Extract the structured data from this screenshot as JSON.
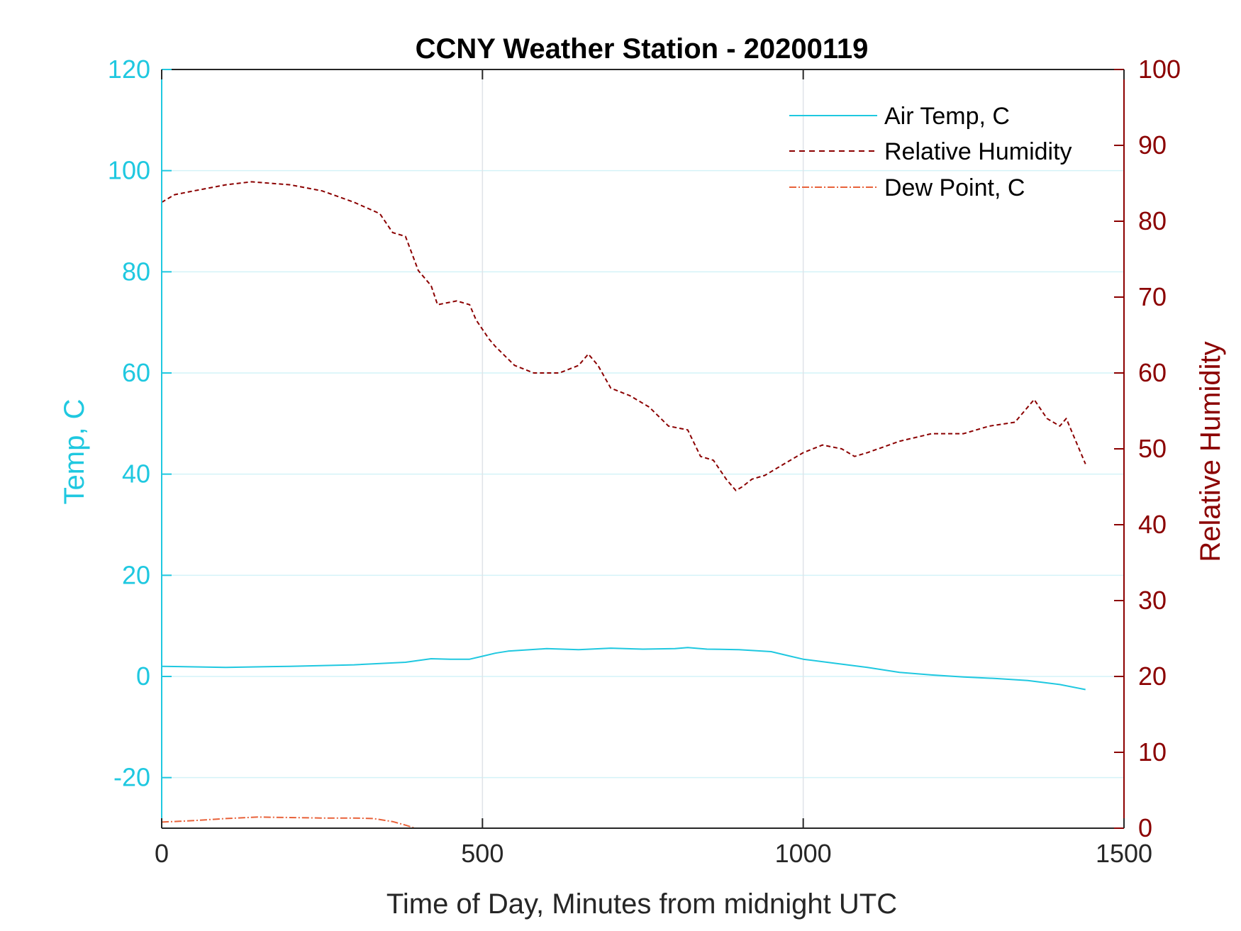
{
  "chart_data": {
    "type": "line",
    "title": "CCNY Weather Station - 20200119",
    "xlabel": "Time of Day, Minutes from midnight UTC",
    "ylabel_left": "Temp, C",
    "ylabel_right": "Relative Humidity",
    "xlim": [
      0,
      1500
    ],
    "ylim_left": [
      -30,
      120
    ],
    "ylim_right": [
      0,
      100
    ],
    "xticks": [
      0,
      500,
      1000,
      1500
    ],
    "yticks_left": [
      -20,
      0,
      20,
      40,
      60,
      80,
      100,
      120
    ],
    "yticks_right": [
      0,
      10,
      20,
      30,
      40,
      50,
      60,
      70,
      80,
      90,
      100
    ],
    "grid": true,
    "legend_position": "top-right",
    "series": [
      {
        "name": "Air Temp, C",
        "axis": "left",
        "style": "solid",
        "color": "#1fc8e0",
        "x": [
          0,
          100,
          200,
          300,
          380,
          420,
          450,
          480,
          500,
          520,
          540,
          600,
          650,
          700,
          750,
          800,
          820,
          850,
          900,
          950,
          980,
          1000,
          1050,
          1100,
          1150,
          1200,
          1250,
          1300,
          1350,
          1400,
          1440
        ],
        "y": [
          2.0,
          1.8,
          2.0,
          2.3,
          2.8,
          3.5,
          3.4,
          3.4,
          4.0,
          4.6,
          5.0,
          5.5,
          5.3,
          5.6,
          5.4,
          5.5,
          5.7,
          5.4,
          5.3,
          4.9,
          4.0,
          3.4,
          2.6,
          1.8,
          0.8,
          0.3,
          -0.1,
          -0.4,
          -0.8,
          -1.6,
          -2.6
        ]
      },
      {
        "name": "Relative Humidity",
        "axis": "right",
        "style": "dashed",
        "color": "#8b0000",
        "x": [
          0,
          20,
          50,
          100,
          140,
          200,
          250,
          300,
          340,
          360,
          380,
          400,
          420,
          430,
          460,
          480,
          490,
          510,
          520,
          550,
          580,
          620,
          650,
          665,
          680,
          700,
          730,
          760,
          790,
          820,
          840,
          860,
          880,
          895,
          905,
          920,
          940,
          970,
          1000,
          1030,
          1060,
          1080,
          1100,
          1150,
          1200,
          1250,
          1290,
          1330,
          1360,
          1380,
          1400,
          1410,
          1420,
          1435,
          1440
        ],
        "y": [
          82.5,
          83.5,
          84.0,
          84.8,
          85.2,
          84.8,
          84.0,
          82.5,
          81.0,
          78.5,
          78.0,
          73.5,
          71.5,
          69.0,
          69.5,
          69.0,
          67.0,
          64.5,
          63.5,
          61.0,
          60.0,
          60.0,
          61.0,
          62.5,
          61.0,
          58.0,
          57.0,
          55.5,
          53.0,
          52.5,
          49.0,
          48.5,
          46.0,
          44.5,
          45.0,
          46.0,
          46.5,
          48.0,
          49.5,
          50.5,
          50.0,
          49.0,
          49.5,
          51.0,
          52.0,
          52.0,
          53.0,
          53.5,
          56.5,
          54.0,
          53.0,
          54.0,
          52.0,
          49.0,
          48.0
        ]
      },
      {
        "name": "Dew Point, C",
        "axis": "left",
        "style": "dashdot",
        "color": "#e8623a",
        "x": [
          0,
          50,
          100,
          150,
          200,
          250,
          300,
          330,
          360,
          380,
          395
        ],
        "y": [
          -28.8,
          -28.5,
          -28.1,
          -27.8,
          -27.9,
          -28.0,
          -28.0,
          -28.1,
          -28.7,
          -29.4,
          -30.0
        ]
      }
    ]
  }
}
